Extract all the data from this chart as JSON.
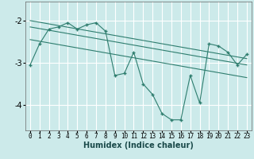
{
  "xlabel": "Humidex (Indice chaleur)",
  "background_color": "#cceaea",
  "grid_color": "#ffffff",
  "line_color": "#2e7d6e",
  "x_ticks": [
    0,
    1,
    2,
    3,
    4,
    5,
    6,
    7,
    8,
    9,
    10,
    11,
    12,
    13,
    14,
    15,
    16,
    17,
    18,
    19,
    20,
    21,
    22,
    23
  ],
  "xlim": [
    -0.5,
    23.5
  ],
  "ylim": [
    -4.6,
    -1.55
  ],
  "y_ticks": [
    -4,
    -3,
    -2
  ],
  "series": {
    "line1_x": [
      0,
      1,
      2,
      3,
      4,
      5,
      6,
      7,
      8,
      9,
      10,
      11,
      12,
      13,
      14,
      15,
      16,
      17,
      18,
      19,
      20,
      21,
      22,
      23
    ],
    "line1_y": [
      -3.05,
      -2.55,
      -2.2,
      -2.15,
      -2.05,
      -2.2,
      -2.1,
      -2.05,
      -2.25,
      -3.3,
      -3.25,
      -2.75,
      -3.5,
      -3.75,
      -4.2,
      -4.35,
      -4.35,
      -3.3,
      -3.95,
      -2.55,
      -2.6,
      -2.75,
      -3.05,
      -2.8
    ],
    "line2_x": [
      0,
      23
    ],
    "line2_y": [
      -2.0,
      -2.9
    ],
    "line3_x": [
      0,
      23
    ],
    "line3_y": [
      -2.15,
      -3.05
    ],
    "line4_x": [
      0,
      23
    ],
    "line4_y": [
      -2.45,
      -3.35
    ]
  }
}
